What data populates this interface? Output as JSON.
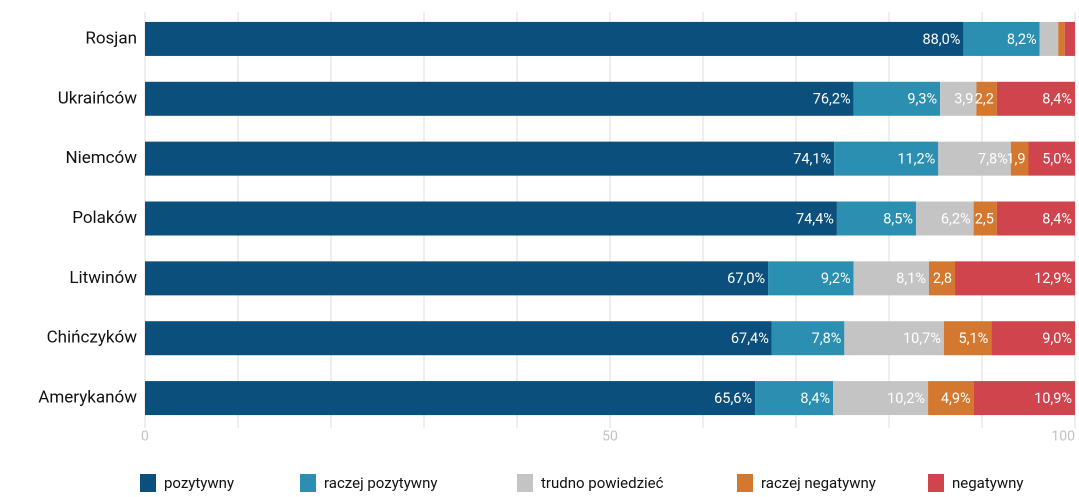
{
  "chart_data": {
    "type": "stacked-bar-horizontal",
    "categories": [
      "Rosjan",
      "Ukraińców",
      "Niemców",
      "Polaków",
      "Litwinów",
      "Chińczyków",
      "Amerykanów"
    ],
    "series": [
      {
        "name": "pozytywny",
        "color": "#0b4f7c",
        "values": [
          88.0,
          76.2,
          74.1,
          74.4,
          67.0,
          67.4,
          65.6
        ],
        "value_labels": [
          "88,0%",
          "76,2%",
          "74,1%",
          "74,4%",
          "67,0%",
          "67,4%",
          "65,6%"
        ]
      },
      {
        "name": "raczej pozytywny",
        "color": "#2a8fb0",
        "values": [
          8.2,
          9.3,
          11.2,
          8.5,
          9.2,
          7.8,
          8.4
        ],
        "value_labels": [
          "8,2%",
          "9,3%",
          "11,2%",
          "8,5%",
          "9,2%",
          "7,8%",
          "8,4%"
        ]
      },
      {
        "name": "trudno powiedzieć",
        "color": "#c4c4c4",
        "values": [
          2.0,
          3.9,
          7.8,
          6.2,
          8.1,
          10.7,
          10.2
        ],
        "value_labels": [
          null,
          "3,9",
          "7,8%",
          "6,2%",
          "8,1%",
          "10,7%",
          "10,2%"
        ]
      },
      {
        "name": "raczej negatywny",
        "color": "#d4782f",
        "values": [
          0.7,
          2.2,
          1.9,
          2.5,
          2.8,
          5.1,
          4.9
        ],
        "value_labels": [
          null,
          "2,2",
          "1,9",
          "2,5",
          "2,8",
          "5,1%",
          "4,9%"
        ]
      },
      {
        "name": "negatywny",
        "color": "#d0444e",
        "values": [
          1.1,
          8.4,
          5.0,
          8.4,
          12.9,
          9.0,
          10.9
        ],
        "value_labels": [
          null,
          "8,4%",
          "5,0%",
          "8,4%",
          "12,9%",
          "9,0%",
          "10,9%"
        ]
      }
    ],
    "xlim": [
      0,
      100
    ],
    "xticks": [
      0,
      50,
      100
    ],
    "xgrid": [
      0,
      10,
      20,
      30,
      40,
      50,
      60,
      70,
      80,
      90,
      100
    ]
  }
}
